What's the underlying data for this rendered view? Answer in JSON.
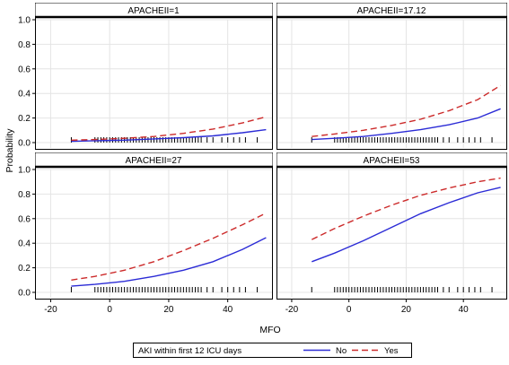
{
  "chart_data": {
    "type": "line",
    "layout": "2x2 panel",
    "ylabel": "Probability",
    "xlabel": "MFO",
    "xlim": [
      -25,
      55
    ],
    "ylim": [
      0,
      1
    ],
    "xticks": [
      -20,
      0,
      20,
      40
    ],
    "yticks": [
      0.0,
      0.2,
      0.4,
      0.6,
      0.8,
      1.0
    ],
    "ytick_labels": [
      "0.0",
      "0.2",
      "0.4",
      "0.6",
      "0.8",
      "1.0"
    ],
    "xtick_labels": [
      "-20",
      "0",
      "20",
      "40"
    ],
    "legend": {
      "title": "AKI within first 12 ICU days",
      "placement": "bottom",
      "entries": [
        {
          "label": "No",
          "color": "#2b2bd6",
          "dash": "solid"
        },
        {
          "label": "Yes",
          "color": "#cc2a2a",
          "dash": "dashed"
        }
      ]
    },
    "x": [
      -13,
      -5,
      5,
      15,
      25,
      35,
      45,
      53
    ],
    "panels": [
      {
        "title": "APACHEII=1",
        "series": [
          {
            "name": "No",
            "values": [
              0.01,
              0.015,
              0.02,
              0.03,
              0.04,
              0.055,
              0.08,
              0.105
            ]
          },
          {
            "name": "Yes",
            "values": [
              0.02,
              0.025,
              0.035,
              0.05,
              0.075,
              0.11,
              0.16,
              0.21
            ]
          }
        ]
      },
      {
        "title": "APACHEII=17.12",
        "series": [
          {
            "name": "No",
            "values": [
              0.025,
              0.035,
              0.05,
              0.075,
              0.105,
              0.145,
              0.2,
              0.275
            ]
          },
          {
            "name": "Yes",
            "values": [
              0.05,
              0.07,
              0.1,
              0.14,
              0.19,
              0.26,
              0.35,
              0.465
            ]
          }
        ]
      },
      {
        "title": "APACHEII=27",
        "series": [
          {
            "name": "No",
            "values": [
              0.05,
              0.065,
              0.09,
              0.13,
              0.18,
              0.25,
              0.35,
              0.445
            ]
          },
          {
            "name": "Yes",
            "values": [
              0.1,
              0.13,
              0.18,
              0.25,
              0.34,
              0.44,
              0.55,
              0.645
            ]
          }
        ]
      },
      {
        "title": "APACHEII=53",
        "series": [
          {
            "name": "No",
            "values": [
              0.25,
              0.32,
              0.42,
              0.53,
              0.64,
              0.73,
              0.81,
              0.855
            ]
          },
          {
            "name": "Yes",
            "values": [
              0.43,
              0.52,
              0.62,
              0.71,
              0.79,
              0.85,
              0.9,
              0.93
            ]
          }
        ]
      }
    ],
    "rug_ticks": [
      -13,
      -5,
      -4,
      -3,
      -2,
      -1,
      0,
      1,
      2,
      3,
      4,
      5,
      6,
      7,
      8,
      9,
      10,
      11,
      12,
      13,
      14,
      15,
      16,
      17,
      18,
      19,
      20,
      21,
      22,
      23,
      24,
      25,
      26,
      27,
      28,
      29,
      30,
      31,
      33,
      35,
      38,
      40,
      42,
      44,
      46,
      50
    ]
  }
}
